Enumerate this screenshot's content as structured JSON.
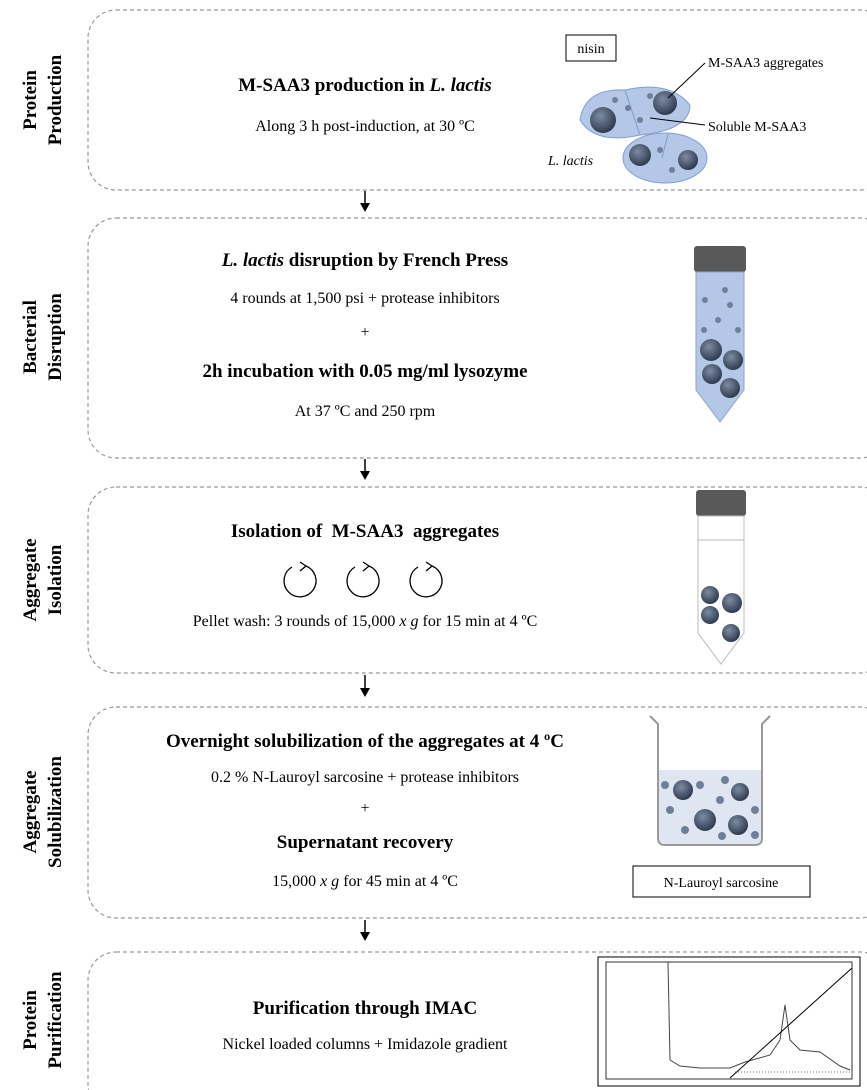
{
  "stages": [
    {
      "label": [
        "Protein",
        "Production"
      ],
      "title": [
        "M-SAA3 production in ",
        "L. lactis"
      ],
      "sub": "Along 3 h post-induction, at 30 ºC",
      "figure": {
        "inducer": "nisin",
        "aggregates": "M-SAA3 aggregates",
        "soluble": "Soluble M-SAA3",
        "organism": "L. lactis"
      }
    },
    {
      "label": [
        "Bacterial",
        "Disruption"
      ],
      "title": [
        "L. lactis",
        " disruption by French Press"
      ],
      "sub": "4 rounds at 1,500 psi + protease inhibitors",
      "plus": "+",
      "title2": "2h incubation with 0.05 mg/ml lysozyme",
      "sub2": "At 37 ºC and 250 rpm"
    },
    {
      "label": [
        "Aggregate",
        "Isolation"
      ],
      "title": "Isolation of  M-SAA3  aggregates",
      "sub": [
        "Pellet wash: 3 rounds of 15,000 ",
        "x g",
        " for 15 min at 4 ºC"
      ]
    },
    {
      "label": [
        "Aggregate",
        "Solubilization"
      ],
      "title": "Overnight solubilization of the aggregates at 4 ºC",
      "sub": "0.2 % N-Lauroyl sarcosine + protease inhibitors",
      "plus": "+",
      "title2": "Supernatant recovery",
      "sub2": [
        "15,000 ",
        "x g",
        " for 45 min at 4 ºC"
      ],
      "figure": {
        "reagent": "N-Lauroyl sarcosine"
      }
    },
    {
      "label": [
        "Protein",
        "Purification"
      ],
      "title": "Purification through IMAC",
      "sub": "Nickel loaded columns + Imidazole gradient"
    }
  ]
}
